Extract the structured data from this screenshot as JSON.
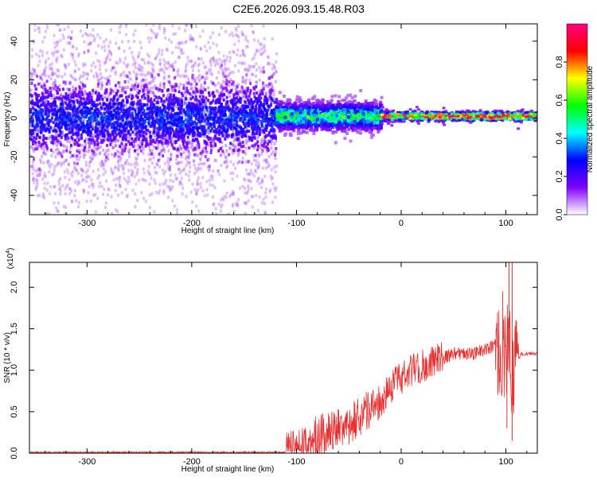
{
  "title": "C2E6.2026.093.15.48.R03",
  "chart_data": [
    {
      "type": "heatmap",
      "xlabel": "Height of straight line (km)",
      "ylabel": "Frequency (Hz)",
      "xlim": [
        -355,
        130
      ],
      "ylim": [
        -50,
        49
      ],
      "xticks": [
        -300,
        -200,
        -100,
        0,
        100
      ],
      "yticks": [
        -40,
        -20,
        0,
        20,
        40
      ],
      "xtick_labels": [
        "-300",
        "-200",
        "-100",
        "0",
        "100"
      ],
      "ytick_labels": [
        "-40",
        "-20",
        "0",
        "20",
        "40"
      ],
      "colorbar": {
        "label": "Normalized spectral amplitude",
        "range": [
          0,
          1
        ],
        "ticks": [
          0.0,
          0.2,
          0.4,
          0.6,
          0.8
        ],
        "tick_labels": [
          "0.0",
          "0.2",
          "0.4",
          "0.6",
          "0.8"
        ],
        "colormap": [
          "#ffffff",
          "#8000ff",
          "#0000ff",
          "#00ffff",
          "#00ff00",
          "#ffff00",
          "#ff0000",
          "#ff0080"
        ]
      },
      "regions": [
        {
          "x": [
            -355,
            -120
          ],
          "freq_center": 0,
          "freq_spread": 50,
          "core_spread": 8,
          "amplitude": 0.2
        },
        {
          "x": [
            -120,
            -20
          ],
          "freq_center": 1,
          "freq_spread": 8,
          "core_spread": 3,
          "amplitude": 0.45
        },
        {
          "x": [
            -20,
            130
          ],
          "freq_center": 1,
          "freq_spread": 3,
          "core_spread": 1,
          "amplitude": 0.9
        }
      ]
    },
    {
      "type": "line",
      "xlabel": "Height of straight line (km)",
      "ylabel": "SNR (10 * v/v)",
      "yscale_label": "(x10",
      "yscale_exp": "4",
      "xlim": [
        -355,
        130
      ],
      "ylim": [
        0,
        2.3
      ],
      "xticks": [
        -300,
        -200,
        -100,
        0,
        100
      ],
      "yticks": [
        0.0,
        0.5,
        1.0,
        1.5,
        2.0
      ],
      "xtick_labels": [
        "-300",
        "-200",
        "-100",
        "0",
        "100"
      ],
      "ytick_labels": [
        "0.0",
        "0.5",
        "1.0",
        "1.5",
        "2.0"
      ],
      "color": "#e83030",
      "envelope": {
        "x": [
          -355,
          -110,
          -100,
          -90,
          -80,
          -70,
          -60,
          -50,
          -40,
          -30,
          -20,
          -10,
          0,
          10,
          20,
          30,
          40,
          50,
          60,
          70,
          80,
          90,
          95,
          100,
          103,
          106,
          108,
          110,
          115,
          120,
          130
        ],
        "y": [
          0.01,
          0.01,
          0.05,
          0.15,
          0.2,
          0.25,
          0.3,
          0.35,
          0.45,
          0.55,
          0.6,
          0.8,
          0.9,
          1.0,
          1.05,
          1.1,
          1.15,
          1.2,
          1.2,
          1.2,
          1.25,
          1.3,
          1.2,
          1.1,
          1.5,
          1.0,
          0.9,
          1.1,
          1.2,
          1.2,
          1.2
        ]
      },
      "noise": [
        {
          "x": [
            -355,
            -110
          ],
          "amp": 0.01
        },
        {
          "x": [
            -110,
            -20
          ],
          "amp": 0.25
        },
        {
          "x": [
            -20,
            40
          ],
          "amp": 0.2
        },
        {
          "x": [
            40,
            90
          ],
          "amp": 0.08
        },
        {
          "x": [
            90,
            112
          ],
          "amp": 0.6
        },
        {
          "x": [
            112,
            130
          ],
          "amp": 0.02
        }
      ],
      "spikes": [
        {
          "x": 97,
          "y": 1.95
        },
        {
          "x": 103,
          "y": 2.3
        },
        {
          "x": 106,
          "y": 2.3
        },
        {
          "x": 101,
          "y": 0.3
        },
        {
          "x": 106,
          "y": 0.15
        }
      ]
    }
  ]
}
